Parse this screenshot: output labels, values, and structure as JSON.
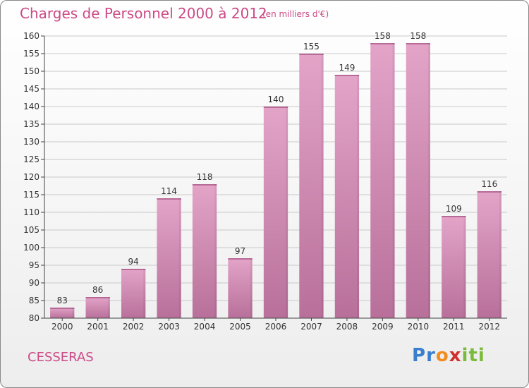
{
  "header": {
    "title": "Charges de Personnel 2000 à 2012",
    "subtitle": "(en milliers d'€)"
  },
  "commune": "CESSERAS",
  "logo": {
    "text": "Proxiti",
    "letters": [
      "P",
      "r",
      "o",
      "x",
      "i",
      "t",
      "i"
    ],
    "colors": [
      "#3a7fcf",
      "#3a7fcf",
      "#f28c1f",
      "#d0302c",
      "#7abb3b",
      "#7abb3b",
      "#7abb3b"
    ]
  },
  "colors": {
    "bar": "#d98bb7",
    "bar_dark": "#b86a97",
    "text_accent": "#cc4a86",
    "grid": "#c8c8c8"
  },
  "chart_data": {
    "type": "bar",
    "title": "Charges de Personnel 2000 à 2012",
    "subtitle": "(en milliers d'€)",
    "categories": [
      "2000",
      "2001",
      "2002",
      "2003",
      "2004",
      "2005",
      "2006",
      "2007",
      "2008",
      "2009",
      "2010",
      "2011",
      "2012"
    ],
    "values": [
      83,
      86,
      94,
      114,
      118,
      97,
      140,
      155,
      149,
      158,
      158,
      109,
      116
    ],
    "ylim": [
      80,
      160
    ],
    "yticks": [
      80,
      85,
      90,
      95,
      100,
      105,
      110,
      115,
      120,
      125,
      130,
      135,
      140,
      145,
      150,
      155,
      160
    ],
    "grid": true,
    "xlabel": "",
    "ylabel": ""
  }
}
